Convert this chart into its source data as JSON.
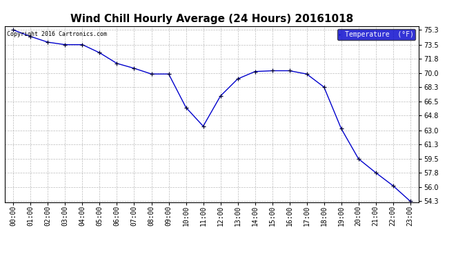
{
  "title": "Wind Chill Hourly Average (24 Hours) 20161018",
  "copyright": "Copyright 2016 Cartronics.com",
  "legend_label": "Temperature  (°F)",
  "hours": [
    "00:00",
    "01:00",
    "02:00",
    "03:00",
    "04:00",
    "05:00",
    "06:00",
    "07:00",
    "08:00",
    "09:00",
    "10:00",
    "11:00",
    "12:00",
    "13:00",
    "14:00",
    "15:00",
    "16:00",
    "17:00",
    "18:00",
    "19:00",
    "20:00",
    "21:00",
    "22:00",
    "23:00"
  ],
  "values": [
    75.3,
    74.5,
    73.8,
    73.5,
    73.5,
    72.5,
    71.2,
    70.6,
    69.9,
    69.9,
    65.8,
    63.5,
    67.2,
    69.3,
    70.2,
    70.3,
    70.3,
    69.9,
    68.3,
    63.2,
    59.5,
    57.8,
    56.2,
    54.3
  ],
  "ylim_min": 54.3,
  "ylim_max": 75.3,
  "yticks": [
    75.3,
    73.5,
    71.8,
    70.0,
    68.3,
    66.5,
    64.8,
    63.0,
    61.3,
    59.5,
    57.8,
    56.0,
    54.3
  ],
  "line_color": "#0000cc",
  "marker_color": "#000033",
  "bg_color": "#ffffff",
  "plot_bg_color": "#ffffff",
  "grid_color": "#aaaaaa",
  "title_fontsize": 11,
  "tick_fontsize": 7,
  "copyright_fontsize": 6,
  "legend_bg": "#0000cc",
  "legend_fg": "#ffffff",
  "legend_fontsize": 7
}
